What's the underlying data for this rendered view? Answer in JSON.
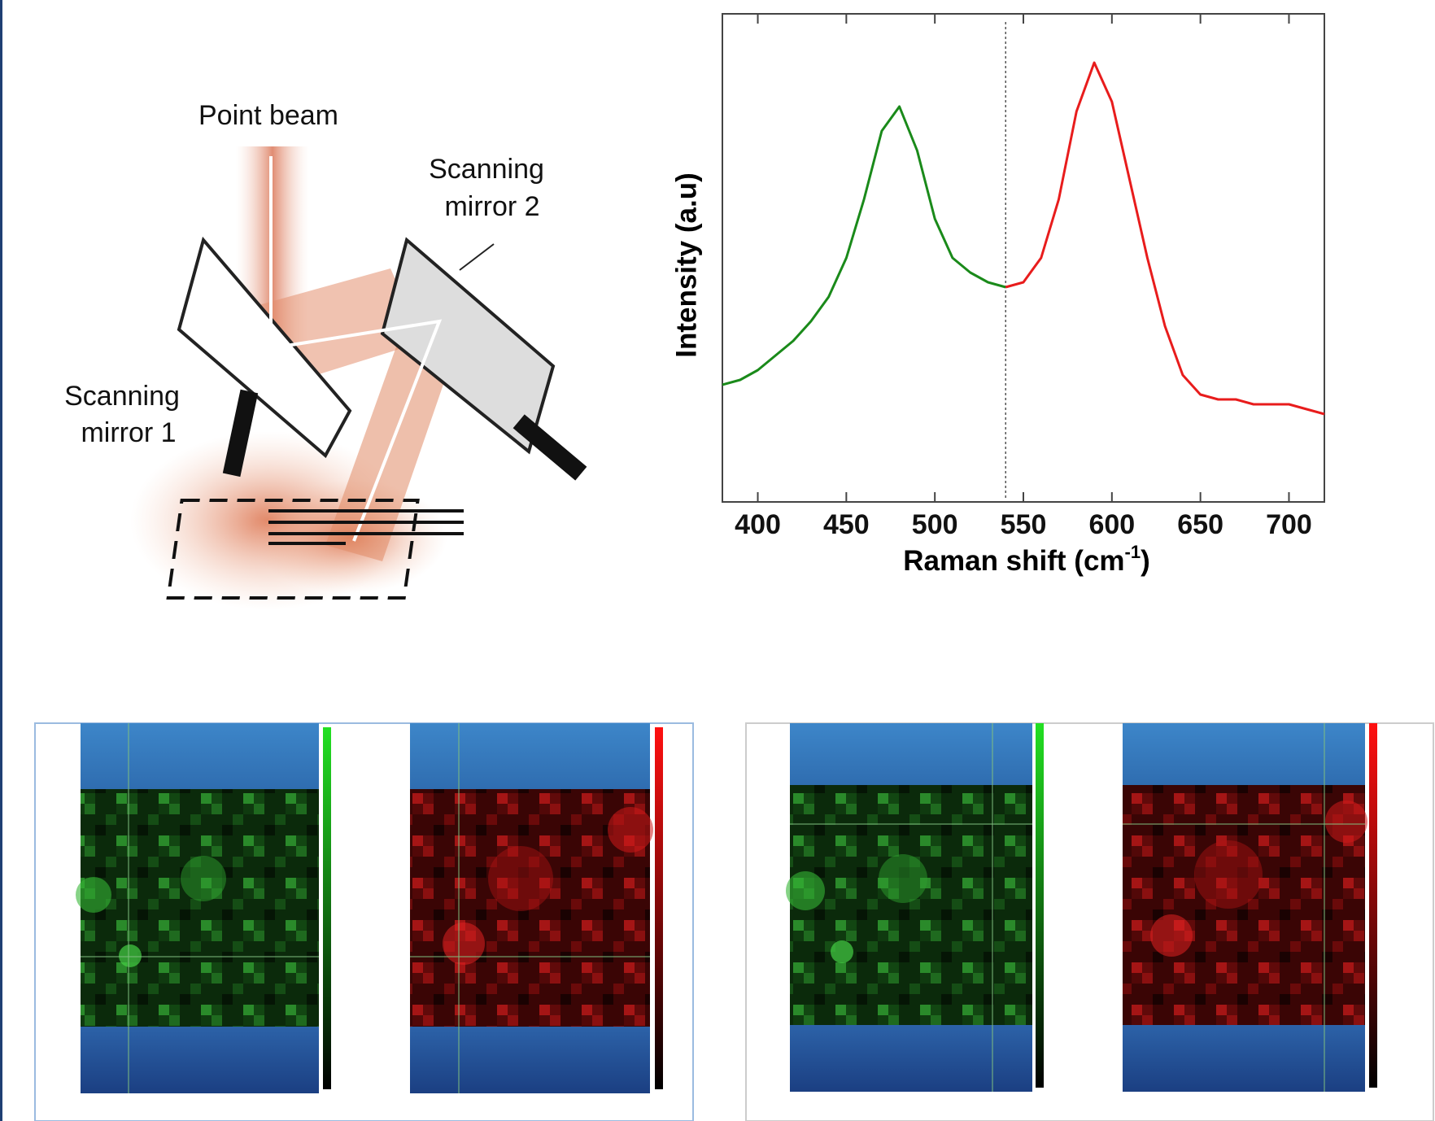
{
  "diagram": {
    "point_beam": "Point beam",
    "mirror2_line1": "Scanning",
    "mirror2_line2": "mirror 2",
    "mirror1_line1": "Scanning",
    "mirror1_line2": "mirror 1"
  },
  "chart_data": {
    "type": "line",
    "ylabel": "Intensity (a.u)",
    "xlabel": "Raman shift (cm",
    "xlabel_sup": "-1",
    "xlabel_end": ")",
    "xlim": [
      380,
      720
    ],
    "ylim": [
      0,
      1
    ],
    "xticks": [
      400,
      450,
      500,
      550,
      600,
      650,
      700
    ],
    "marker_x": 540,
    "series": [
      {
        "color": "#1a8a1a",
        "x": [
          380,
          390,
          400,
          410,
          420,
          430,
          440,
          450,
          460,
          470,
          480,
          490,
          500,
          510,
          520,
          530,
          540
        ],
        "values": [
          0.24,
          0.25,
          0.27,
          0.3,
          0.33,
          0.37,
          0.42,
          0.5,
          0.62,
          0.76,
          0.81,
          0.72,
          0.58,
          0.5,
          0.47,
          0.45,
          0.44
        ]
      },
      {
        "color": "#e81c1c",
        "x": [
          540,
          550,
          560,
          570,
          580,
          590,
          600,
          610,
          620,
          630,
          640,
          650,
          660,
          670,
          680,
          690,
          700,
          710,
          720
        ],
        "values": [
          0.44,
          0.45,
          0.5,
          0.62,
          0.8,
          0.9,
          0.82,
          0.66,
          0.5,
          0.36,
          0.26,
          0.22,
          0.21,
          0.21,
          0.2,
          0.2,
          0.2,
          0.19,
          0.18
        ]
      }
    ]
  }
}
